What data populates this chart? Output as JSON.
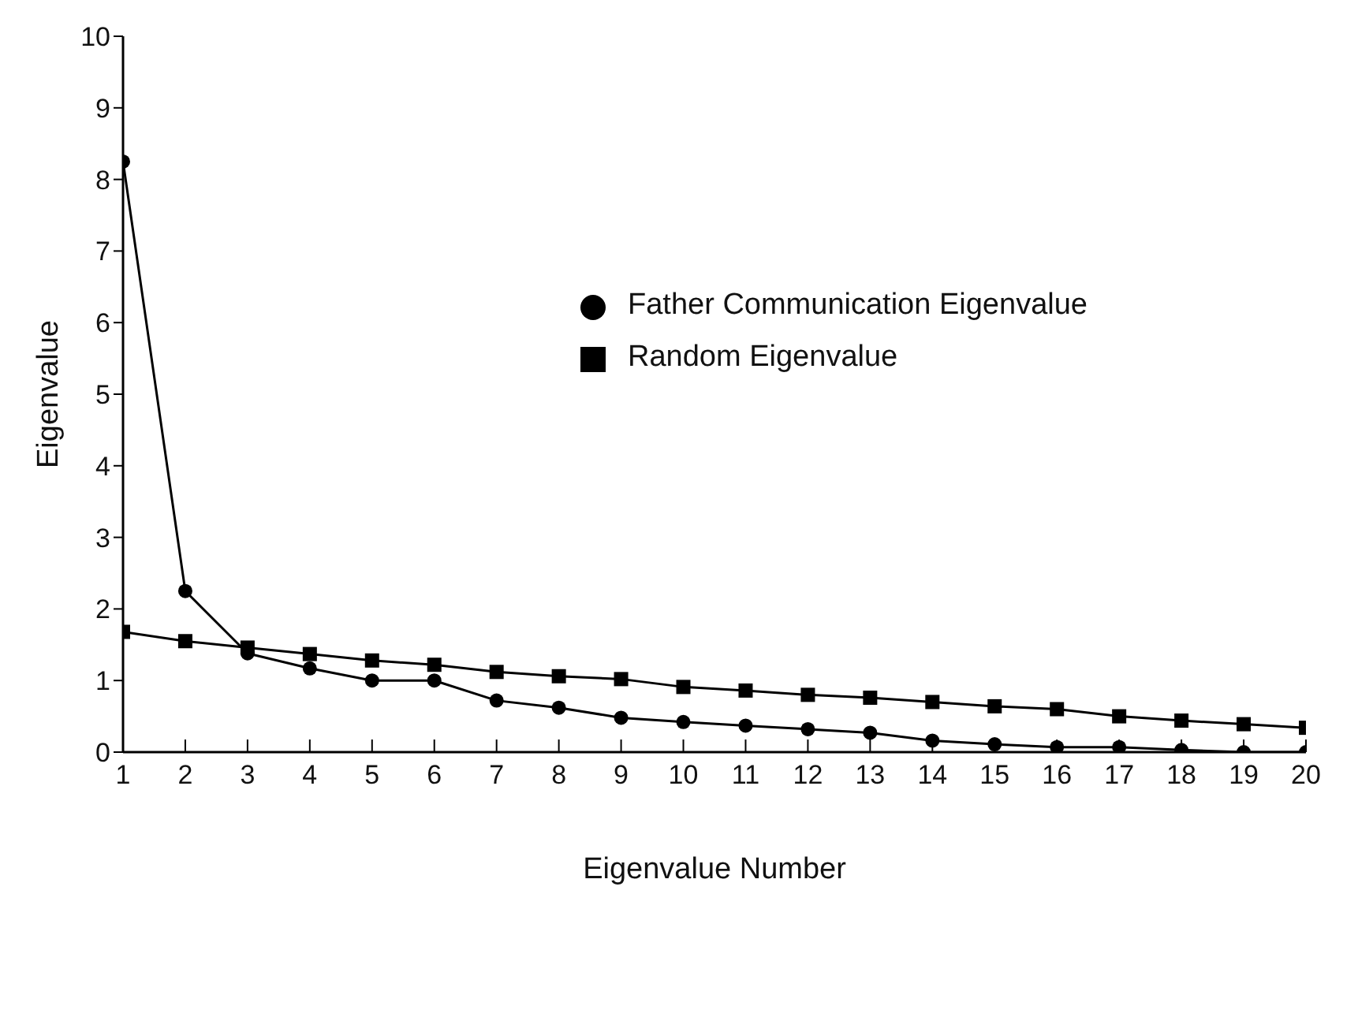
{
  "chart_data": {
    "type": "line",
    "xlabel": "Eigenvalue Number",
    "ylabel": "Eigenvalue",
    "x": [
      1,
      2,
      3,
      4,
      5,
      6,
      7,
      8,
      9,
      10,
      11,
      12,
      13,
      14,
      15,
      16,
      17,
      18,
      19,
      20
    ],
    "xlim": [
      1,
      20
    ],
    "xticks": [
      1,
      2,
      3,
      4,
      5,
      6,
      7,
      8,
      9,
      10,
      11,
      12,
      13,
      14,
      15,
      16,
      17,
      18,
      19,
      20
    ],
    "ylim": [
      0,
      10
    ],
    "yticks": [
      0,
      1,
      2,
      3,
      4,
      5,
      6,
      7,
      8,
      9,
      10
    ],
    "grid": false,
    "legend": "top right",
    "line_style": "solid",
    "series": [
      {
        "name": "Random Eigenvalue",
        "color": "#000000",
        "marker": "square",
        "values": [
          1.68,
          1.55,
          1.46,
          1.37,
          1.28,
          1.22,
          1.12,
          1.06,
          1.02,
          0.91,
          0.86,
          0.8,
          0.76,
          0.7,
          0.64,
          0.6,
          0.5,
          0.44,
          0.39,
          0.34
        ]
      },
      {
        "name": "Father Communication Eigenvalue",
        "color": "#000000",
        "marker": "circle",
        "values": [
          8.25,
          2.25,
          1.38,
          1.17,
          1.0,
          1.0,
          0.72,
          0.62,
          0.48,
          0.42,
          0.37,
          0.32,
          0.27,
          0.16,
          0.11,
          0.07,
          0.07,
          0.03,
          0,
          0
        ]
      }
    ]
  }
}
